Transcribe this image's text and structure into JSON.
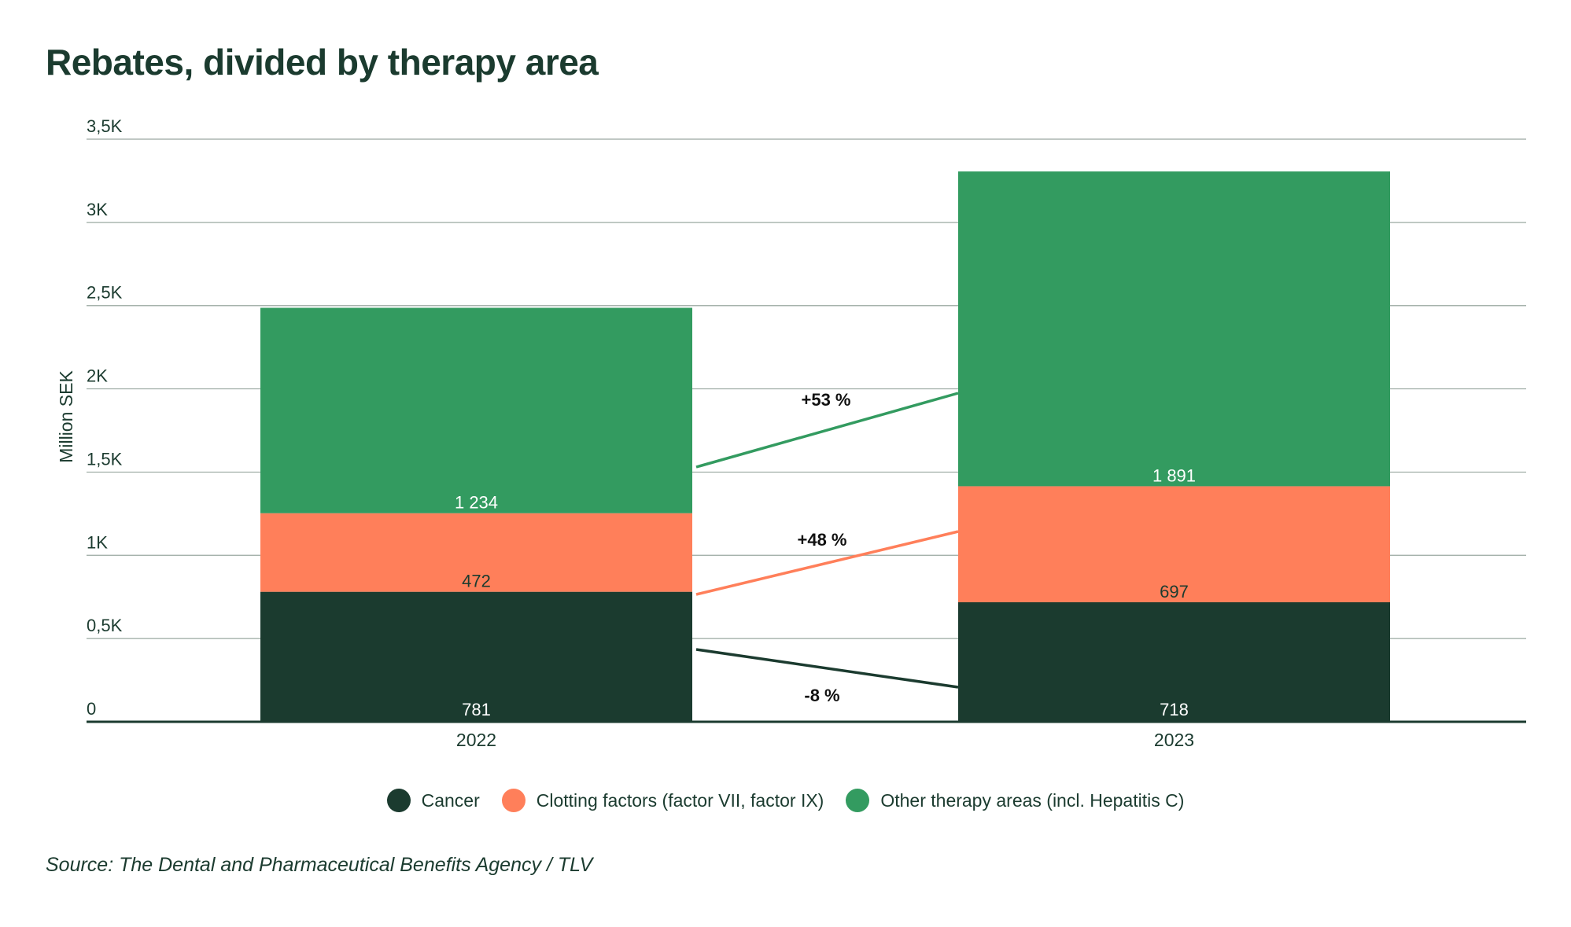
{
  "title": "Rebates, divided by therapy area",
  "source": "Source: The Dental and Pharmaceutical Benefits Agency / TLV",
  "chart_data": {
    "type": "bar",
    "stacked": true,
    "categories": [
      "2022",
      "2023"
    ],
    "series": [
      {
        "name": "Cancer",
        "values": [
          781,
          718
        ],
        "labels": [
          "781",
          "718"
        ],
        "color": "#1b3b2f",
        "label_color": "#ffffff"
      },
      {
        "name": "Clotting factors (factor VII, factor IX)",
        "values": [
          472,
          697
        ],
        "labels": [
          "472",
          "697"
        ],
        "color": "#ff7f5a",
        "label_color": "#1b3b2f"
      },
      {
        "name": "Other therapy areas (incl. Hepatitis C)",
        "values": [
          1234,
          1891
        ],
        "labels": [
          "1 234",
          "1 891"
        ],
        "color": "#339b60",
        "label_color": "#ffffff"
      }
    ],
    "change_labels": [
      "-8  %",
      "+48 %",
      "+53 %"
    ],
    "ylabel": "Million SEK",
    "xlabel": "",
    "ylim": [
      0,
      3500
    ],
    "yticks": [
      0,
      500,
      1000,
      1500,
      2000,
      2500,
      3000,
      3500
    ],
    "ytick_labels": [
      "0",
      "0,5K",
      "1K",
      "1,5K",
      "2K",
      "2,5K",
      "3K",
      "3,5K"
    ],
    "grid": true,
    "legend": "bottom"
  }
}
